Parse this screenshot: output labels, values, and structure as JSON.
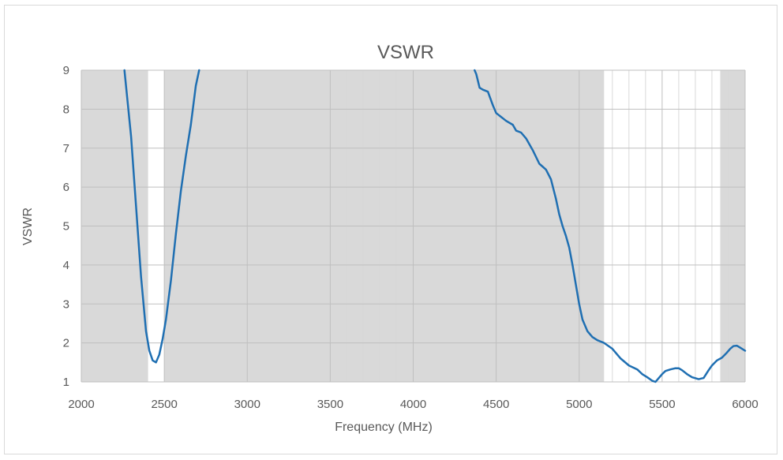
{
  "chart_data": {
    "type": "line",
    "title": "VSWR",
    "xlabel": "Frequency (MHz)",
    "ylabel": "VSWR",
    "xlim": [
      2000,
      6000
    ],
    "ylim": [
      1,
      9
    ],
    "xticks": [
      2000,
      2500,
      3000,
      3500,
      4000,
      4500,
      5000,
      5500,
      6000
    ],
    "yticks": [
      1,
      2,
      3,
      4,
      5,
      6,
      7,
      8,
      9
    ],
    "x_minor_step": 100,
    "grid": true,
    "legend": "none",
    "shaded_bands": [
      {
        "x0": 2000,
        "x1": 2400
      },
      {
        "x0": 2500,
        "x1": 5150
      },
      {
        "x0": 5850,
        "x1": 6000
      }
    ],
    "colors": {
      "line": "#1f6fb2",
      "band": "#d9d9d9",
      "major_grid": "#bfbfbf",
      "minor_grid": "#d9d9d9",
      "text": "#595959"
    },
    "series": [
      {
        "x": [
          2260,
          2300,
          2330,
          2360,
          2390,
          2410,
          2430,
          2450,
          2470,
          2490,
          2510,
          2540,
          2570,
          2600,
          2630,
          2660,
          2690,
          2710,
          4370,
          4380,
          4400,
          4420,
          4450,
          4480,
          4500,
          4530,
          4560,
          4600,
          4620,
          4650,
          4680,
          4720,
          4760,
          4800,
          4830,
          4860,
          4880,
          4900,
          4920,
          4940,
          4960,
          4980,
          5000,
          5020,
          5050,
          5080,
          5110,
          5150,
          5200,
          5250,
          5300,
          5350,
          5380,
          5410,
          5440,
          5460,
          5480,
          5500,
          5520,
          5550,
          5580,
          5600,
          5620,
          5650,
          5680,
          5720,
          5750,
          5780,
          5800,
          5830,
          5860,
          5890,
          5910,
          5930,
          5950,
          5970,
          6000
        ],
        "values": [
          9.0,
          7.3,
          5.5,
          3.7,
          2.3,
          1.8,
          1.55,
          1.5,
          1.7,
          2.1,
          2.6,
          3.6,
          4.8,
          5.9,
          6.8,
          7.6,
          8.6,
          9.0,
          9.0,
          8.9,
          8.55,
          8.5,
          8.45,
          8.1,
          7.9,
          7.8,
          7.7,
          7.6,
          7.45,
          7.4,
          7.25,
          6.95,
          6.6,
          6.45,
          6.2,
          5.7,
          5.3,
          5.0,
          4.75,
          4.45,
          4.0,
          3.5,
          3.0,
          2.6,
          2.3,
          2.15,
          2.07,
          2.0,
          1.85,
          1.6,
          1.42,
          1.32,
          1.2,
          1.12,
          1.03,
          1.0,
          1.1,
          1.2,
          1.28,
          1.32,
          1.35,
          1.35,
          1.3,
          1.2,
          1.12,
          1.07,
          1.1,
          1.3,
          1.42,
          1.55,
          1.62,
          1.75,
          1.85,
          1.92,
          1.93,
          1.88,
          1.8
        ]
      }
    ]
  }
}
